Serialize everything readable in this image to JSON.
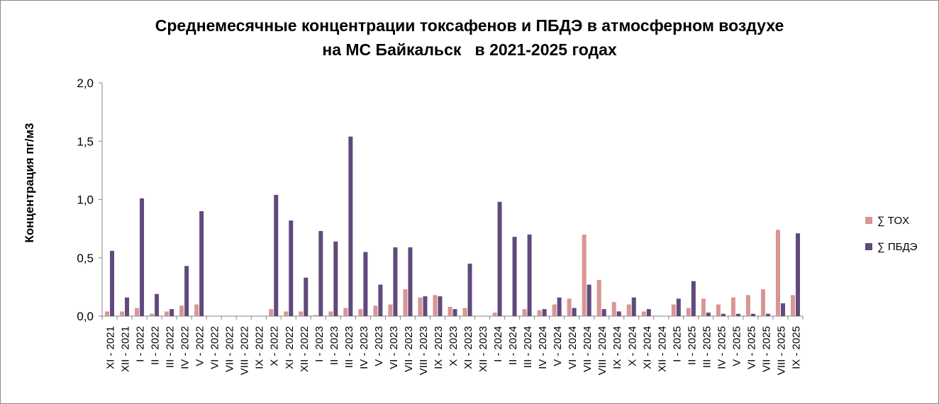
{
  "chart_data": {
    "type": "bar",
    "title": "Среднемесячные концентрации токсафенов и ПБДЭ в атмосферном воздухе",
    "subtitle": "на МС Байкальск   в 2021-2025 годах",
    "xlabel": "",
    "ylabel": "Концентрация пг/м3",
    "ylim": [
      0,
      2.0
    ],
    "yticks": [
      "0,0",
      "0,5",
      "1,0",
      "1,5",
      "2,0"
    ],
    "grid": false,
    "legend_position": "right",
    "categories": [
      "XI - 2021",
      "XII - 2021",
      "I - 2022",
      "II - 2022",
      "III - 2022",
      "IV - 2022",
      "V - 2022",
      "VI - 2022",
      "VII - 2022",
      "VIII - 2022",
      "IX - 2022",
      "X - 2022",
      "XI - 2022",
      "XII - 2022",
      "I - 2023",
      "II - 2023",
      "III - 2023",
      "IV - 2023",
      "V - 2023",
      "VI - 2023",
      "VII - 2023",
      "VIII - 2023",
      "IX - 2023",
      "X - 2023",
      "XI - 2023",
      "XII - 2023",
      "I - 2024",
      "II - 2024",
      "III - 2024",
      "IV - 2024",
      "V - 2024",
      "VI - 2024",
      "VII - 2024",
      "VIII - 2024",
      "IX - 2024",
      "X - 2024",
      "XI - 2024",
      "XII - 2024",
      "I - 2025",
      "II - 2025",
      "III - 2025",
      "IV - 2025",
      "V - 2025",
      "VI - 2025",
      "VII - 2025",
      "VIII - 2025",
      "IX - 2025"
    ],
    "series": [
      {
        "name": "∑ TOX",
        "color": "#d99594",
        "values": [
          0.04,
          0.04,
          0.07,
          0.02,
          0.04,
          0.09,
          0.1,
          0,
          0,
          0,
          0,
          0.06,
          0.04,
          0.04,
          0.01,
          0.04,
          0.07,
          0.06,
          0.09,
          0.1,
          0.23,
          0.16,
          0.18,
          0.08,
          0.07,
          0,
          0.03,
          0,
          0.06,
          0.05,
          0.1,
          0.15,
          0.7,
          0.31,
          0.12,
          0.1,
          0.04,
          0,
          0.1,
          0.07,
          0.15,
          0.1,
          0.16,
          0.18,
          0.23,
          0.74,
          0.18
        ]
      },
      {
        "name": "∑ ПБДЭ",
        "color": "#604a7b",
        "values": [
          0.56,
          0.16,
          1.01,
          0.19,
          0.06,
          0.43,
          0.9,
          0,
          0,
          0,
          0,
          1.04,
          0.82,
          0.33,
          0.73,
          0.64,
          1.54,
          0.55,
          0.27,
          0.59,
          0.59,
          0.17,
          0.17,
          0.06,
          0.45,
          0,
          0.98,
          0.68,
          0.7,
          0.06,
          0.16,
          0.07,
          0.27,
          0.06,
          0.04,
          0.16,
          0.06,
          0,
          0.15,
          0.3,
          0.03,
          0.02,
          0.02,
          0.02,
          0.02,
          0.11,
          0.71
        ]
      }
    ]
  }
}
